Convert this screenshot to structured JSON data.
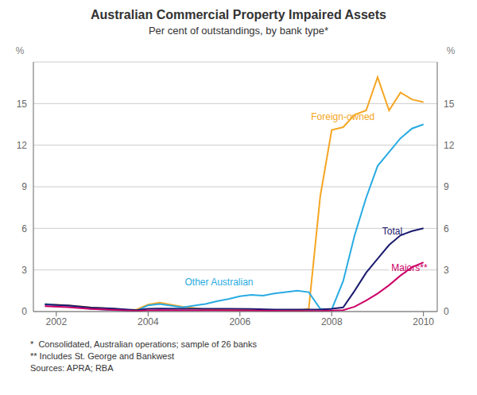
{
  "chart_data": {
    "type": "line",
    "title": "Australian Commercial Property Impaired Assets",
    "subtitle": "Per cent of outstandings, by bank type*",
    "ylabel": "%",
    "y2label": "%",
    "footnotes": [
      "*  Consolidated, Australian operations; sample of 26 banks",
      "** Includes St. George and Bankwest",
      "Sources: APRA; RBA"
    ],
    "xlim": [
      2001.5,
      2010.3
    ],
    "xticks": [
      2002,
      2004,
      2006,
      2008,
      2010
    ],
    "ylim": [
      0,
      18
    ],
    "yticks": [
      0,
      3,
      6,
      9,
      12,
      15
    ],
    "y2lim": [
      0,
      18
    ],
    "y2ticks": [
      0,
      3,
      6,
      9,
      12,
      15
    ],
    "grid": true,
    "series": [
      {
        "name": "Foreign-owned",
        "color": "#F5A623",
        "x": [
          2001.75,
          2002.25,
          2002.75,
          2003.25,
          2003.5,
          2003.75,
          2004.0,
          2004.25,
          2004.75,
          2005.25,
          2005.75,
          2006.25,
          2006.75,
          2007.0,
          2007.25,
          2007.4,
          2007.5,
          2007.75,
          2008.0,
          2008.25,
          2008.5,
          2008.75,
          2009.0,
          2009.25,
          2009.5,
          2009.75,
          2010.0
        ],
        "values": [
          0.55,
          0.45,
          0.3,
          0.2,
          0.1,
          0.15,
          0.5,
          0.65,
          0.35,
          0.15,
          0.1,
          0.1,
          0.1,
          0.1,
          0.1,
          0.15,
          0.2,
          8.3,
          13.1,
          13.3,
          14.2,
          14.5,
          16.9,
          14.5,
          15.8,
          15.3,
          15.1
        ]
      },
      {
        "name": "Other Australian",
        "color": "#29ABE2",
        "x": [
          2001.75,
          2002.25,
          2002.75,
          2003.25,
          2003.75,
          2004.0,
          2004.25,
          2004.75,
          2005.25,
          2005.5,
          2005.75,
          2006.0,
          2006.25,
          2006.5,
          2006.75,
          2007.0,
          2007.25,
          2007.5,
          2007.75,
          2008.0,
          2008.25,
          2008.5,
          2008.75,
          2009.0,
          2009.25,
          2009.5,
          2009.75,
          2010.0
        ],
        "values": [
          0.55,
          0.4,
          0.2,
          0.1,
          0.05,
          0.45,
          0.55,
          0.3,
          0.55,
          0.75,
          0.9,
          1.1,
          1.2,
          1.15,
          1.3,
          1.4,
          1.5,
          1.4,
          0.2,
          0.15,
          2.2,
          5.5,
          8.2,
          10.5,
          11.5,
          12.5,
          13.2,
          13.5
        ]
      },
      {
        "name": "Total",
        "color": "#1A1A6E",
        "x": [
          2001.75,
          2002.25,
          2002.75,
          2003.25,
          2003.75,
          2004.0,
          2004.25,
          2004.75,
          2005.25,
          2005.75,
          2006.25,
          2006.75,
          2007.0,
          2007.25,
          2007.5,
          2007.75,
          2008.0,
          2008.25,
          2008.5,
          2008.75,
          2009.0,
          2009.25,
          2009.5,
          2009.75,
          2010.0
        ],
        "values": [
          0.5,
          0.45,
          0.28,
          0.22,
          0.1,
          0.2,
          0.22,
          0.2,
          0.2,
          0.2,
          0.18,
          0.15,
          0.15,
          0.15,
          0.15,
          0.15,
          0.2,
          0.3,
          1.5,
          2.8,
          3.8,
          4.8,
          5.5,
          5.8,
          6.0
        ]
      },
      {
        "name": "Majors**",
        "color": "#CC0066",
        "x": [
          2001.75,
          2002.25,
          2002.75,
          2003.25,
          2003.75,
          2004.0,
          2004.25,
          2004.75,
          2005.25,
          2005.75,
          2006.25,
          2006.75,
          2007.0,
          2007.25,
          2007.5,
          2007.75,
          2008.0,
          2008.25,
          2008.5,
          2008.75,
          2009.0,
          2009.25,
          2009.5,
          2009.75,
          2010.0
        ],
        "values": [
          0.38,
          0.32,
          0.18,
          0.12,
          0.05,
          0.08,
          0.1,
          0.08,
          0.08,
          0.08,
          0.07,
          0.06,
          0.05,
          0.05,
          0.05,
          0.05,
          0.07,
          0.1,
          0.35,
          0.8,
          1.3,
          1.9,
          2.6,
          3.2,
          3.55
        ]
      }
    ],
    "annotations": [
      {
        "text": "Foreign-owned",
        "x": 2007.55,
        "y": 13.8,
        "color": "#F5A623"
      },
      {
        "text": "Other Australian",
        "x": 2004.8,
        "y": 1.9,
        "color": "#29ABE2"
      },
      {
        "text": "Total",
        "x": 2009.1,
        "y": 5.55,
        "color": "#1A1A6E"
      },
      {
        "text": "Majors**",
        "x": 2009.3,
        "y": 2.95,
        "color": "#CC0066"
      }
    ]
  }
}
